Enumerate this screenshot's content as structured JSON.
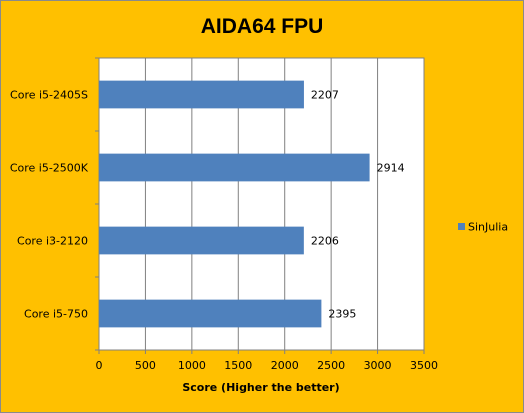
{
  "chart_data": {
    "type": "bar",
    "orientation": "horizontal",
    "title": "AIDA64 FPU",
    "xlabel": "Score (Higher the better)",
    "ylabel": "",
    "categories": [
      "Core i5-2405S",
      "Core i5-2500K",
      "Core i3-2120",
      "Core i5-750"
    ],
    "series": [
      {
        "name": "SinJulia",
        "values": [
          2207,
          2914,
          2206,
          2395
        ],
        "color": "#4f81bd"
      }
    ],
    "xlim": [
      0,
      3500
    ],
    "ticks": [
      "0",
      "500",
      "1000",
      "1500",
      "2000",
      "2500",
      "3000",
      "3500"
    ],
    "tick_values": [
      0,
      500,
      1000,
      1500,
      2000,
      2500,
      3000,
      3500
    ],
    "grid": true,
    "data_labels": true,
    "legend_position": "right",
    "background_color": "#ffc000",
    "plot_background": "#ffffff"
  }
}
